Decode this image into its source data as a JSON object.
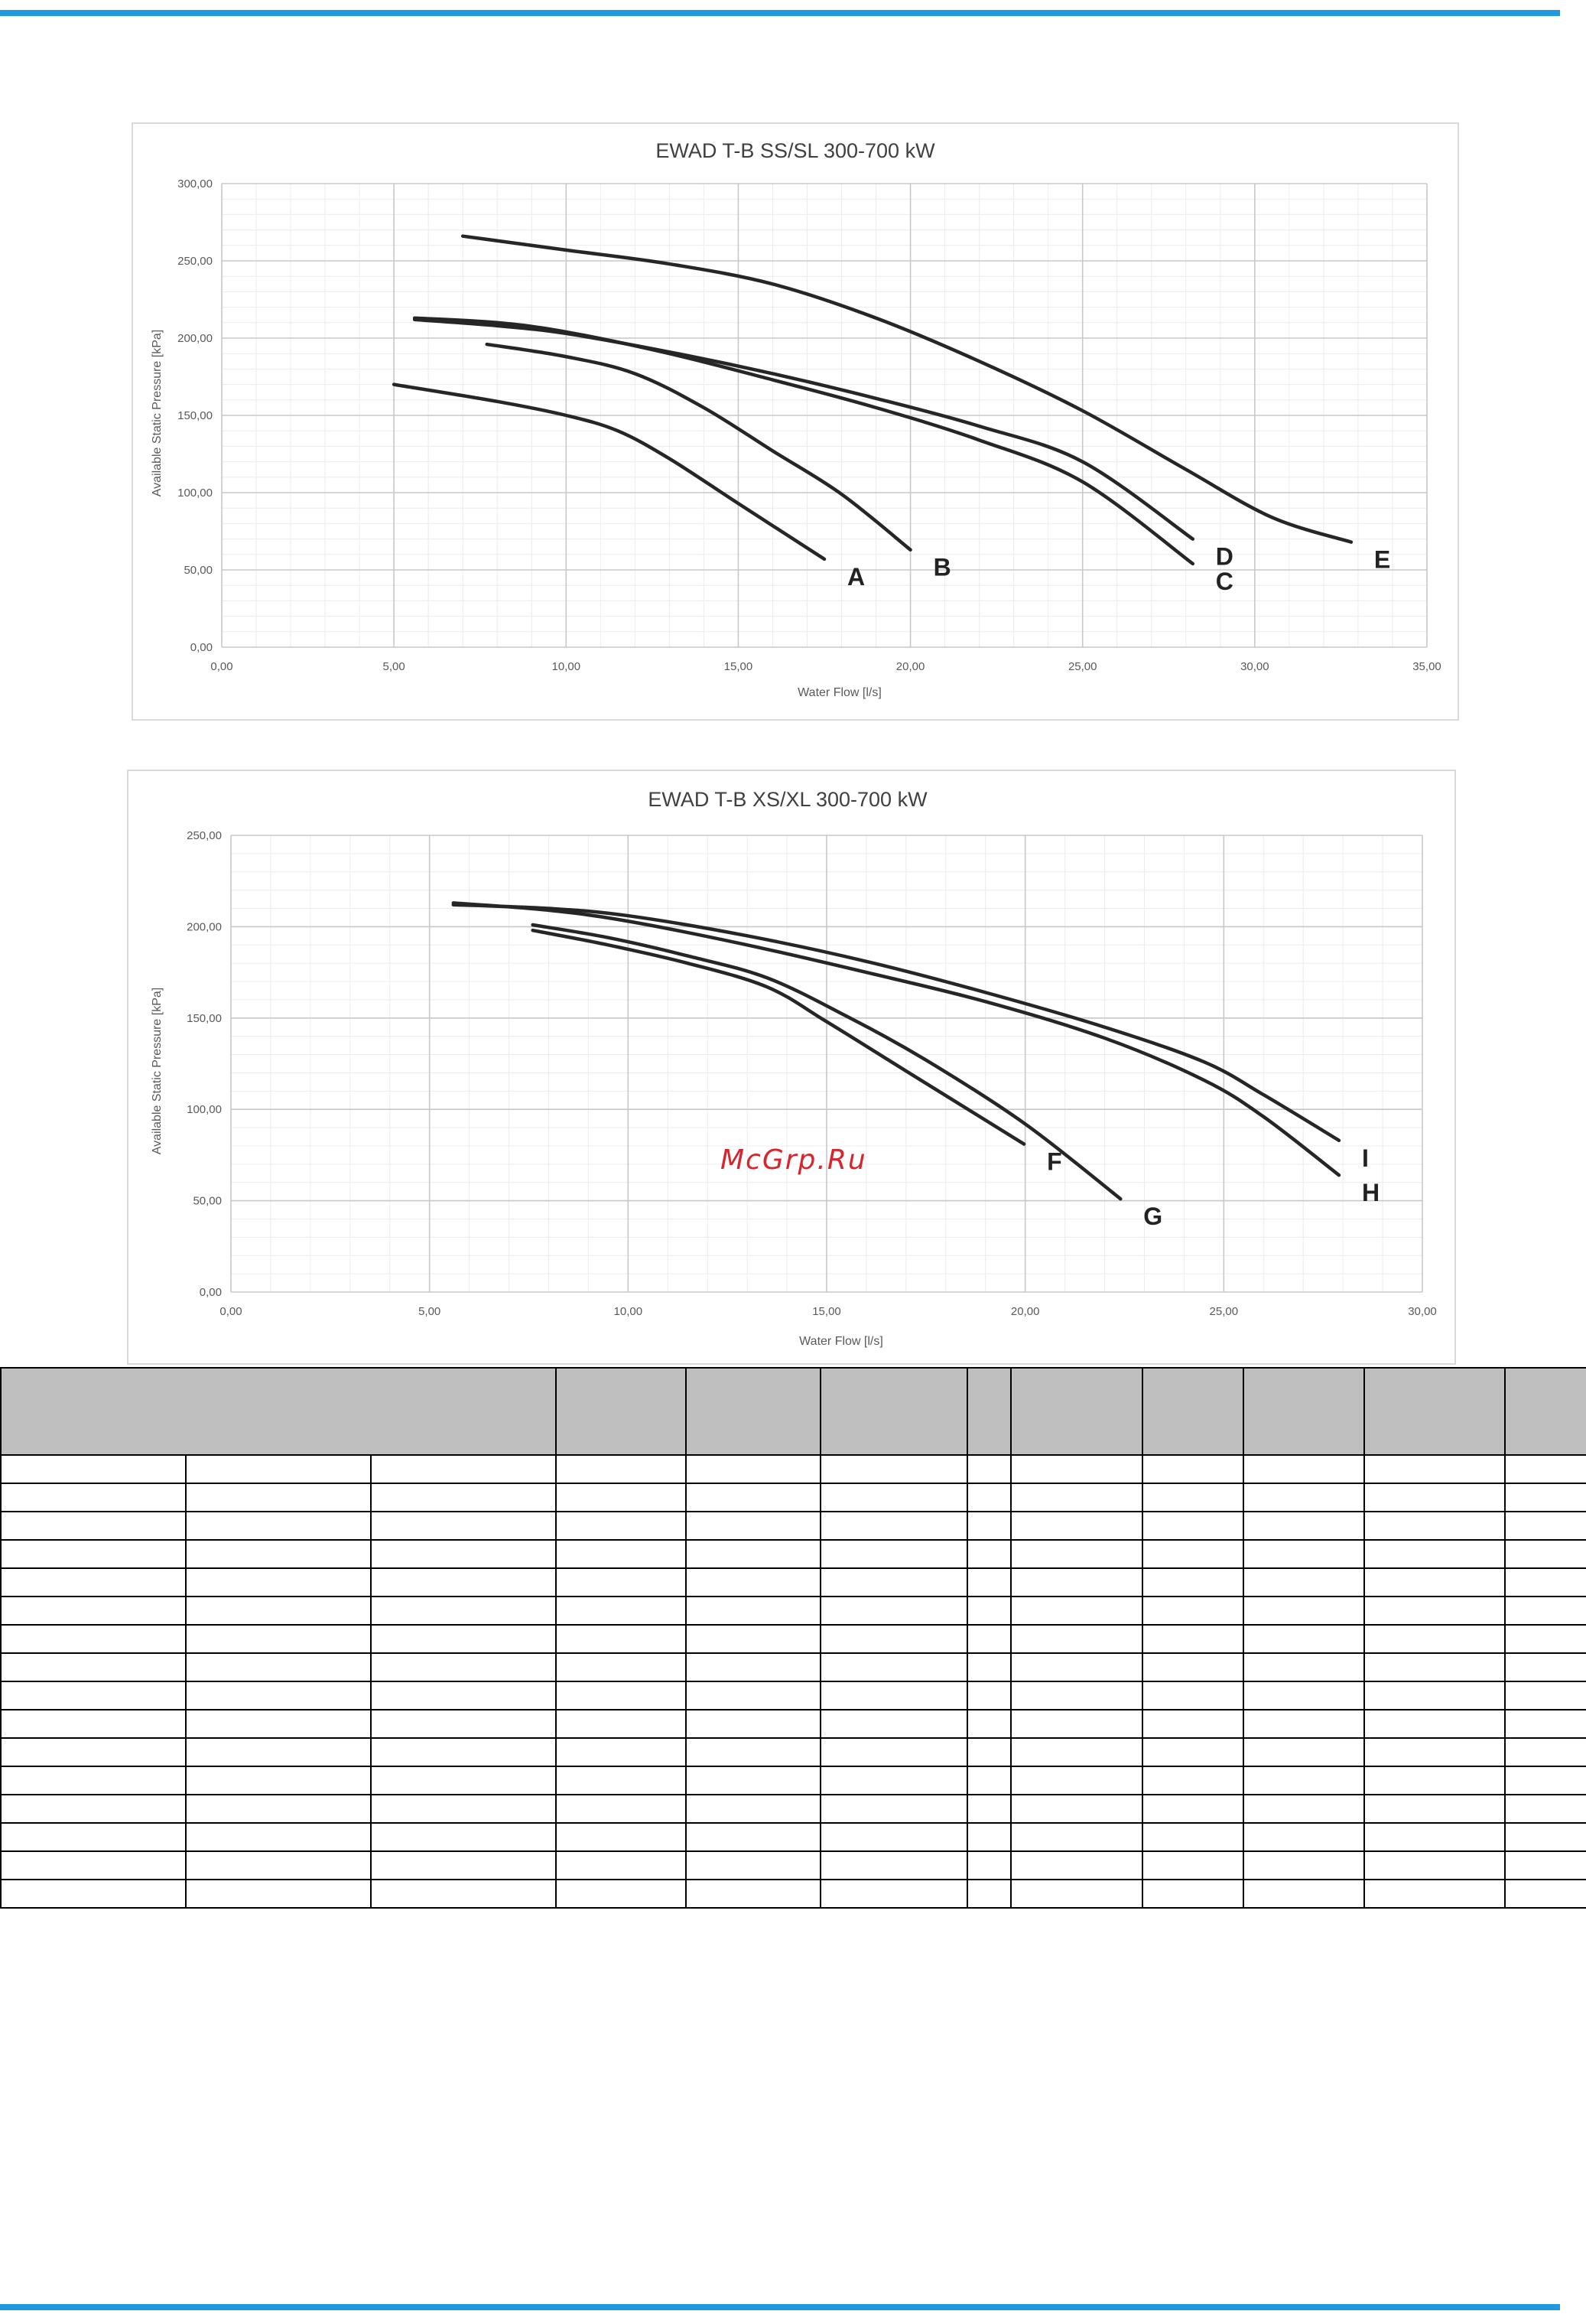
{
  "chart_data": [
    {
      "type": "line",
      "title": "EWAD T-B SS/SL 300-700 kW",
      "xlabel": "Water Flow [l/s]",
      "ylabel": "Available Static Pressure [kPa]",
      "xlim": [
        0,
        35
      ],
      "ylim": [
        0,
        300
      ],
      "x_ticks": [
        "0,00",
        "5,00",
        "10,00",
        "15,00",
        "20,00",
        "25,00",
        "30,00",
        "35,00"
      ],
      "y_ticks": [
        "0,00",
        "50,00",
        "100,00",
        "150,00",
        "200,00",
        "250,00",
        "300,00"
      ],
      "grid": true,
      "series": [
        {
          "name": "A",
          "x": [
            5.0,
            8.0,
            10.0,
            11.5,
            13.0,
            15.0,
            17.5
          ],
          "y": [
            170,
            159,
            150,
            140,
            122,
            93,
            57
          ]
        },
        {
          "name": "B",
          "x": [
            7.7,
            10.0,
            12.0,
            14.0,
            16.0,
            18.0,
            20.0
          ],
          "y": [
            196,
            188,
            177,
            155,
            127,
            99,
            63
          ]
        },
        {
          "name": "C",
          "x": [
            5.6,
            8.0,
            10.0,
            13.0,
            16.0,
            19.0,
            22.0,
            25.0,
            28.2
          ],
          "y": [
            213,
            210,
            204,
            190,
            173,
            155,
            134,
            107,
            54
          ]
        },
        {
          "name": "D",
          "x": [
            5.6,
            8.0,
            10.0,
            13.0,
            16.0,
            19.0,
            22.0,
            25.0,
            28.2
          ],
          "y": [
            212,
            208,
            203,
            191,
            177,
            161,
            143,
            120,
            70
          ]
        },
        {
          "name": "E",
          "x": [
            7.0,
            10.0,
            13.0,
            16.0,
            19.0,
            22.0,
            25.0,
            28.0,
            30.5,
            32.8
          ],
          "y": [
            266,
            257,
            248,
            235,
            213,
            185,
            153,
            115,
            84,
            68
          ]
        }
      ]
    },
    {
      "type": "line",
      "title": "EWAD T-B XS/XL 300-700 kW",
      "xlabel": "Water Flow [l/s]",
      "ylabel": "Available Static Pressure [kPa]",
      "xlim": [
        0,
        30
      ],
      "ylim": [
        0,
        250
      ],
      "x_ticks": [
        "0,00",
        "5,00",
        "10,00",
        "15,00",
        "20,00",
        "25,00",
        "30,00"
      ],
      "y_ticks": [
        "0,00",
        "50,00",
        "100,00",
        "150,00",
        "200,00",
        "250,00"
      ],
      "grid": true,
      "series": [
        {
          "name": "F",
          "x": [
            7.6,
            9.5,
            11.5,
            13.5,
            15.0,
            17.0,
            19.97
          ],
          "y": [
            198,
            190,
            180,
            167,
            148,
            121,
            81
          ]
        },
        {
          "name": "G",
          "x": [
            7.6,
            9.5,
            11.5,
            13.5,
            15.5,
            17.5,
            20.0,
            22.4
          ],
          "y": [
            201,
            194,
            184,
            172,
            151,
            127,
            92,
            51
          ]
        },
        {
          "name": "H",
          "x": [
            5.6,
            8.0,
            10.0,
            13.0,
            16.0,
            19.0,
            22.0,
            24.5,
            26.0,
            27.9
          ],
          "y": [
            213,
            209,
            203,
            190,
            175,
            159,
            139,
            116,
            96,
            64
          ]
        },
        {
          "name": "I",
          "x": [
            5.6,
            8.0,
            10.0,
            13.0,
            16.0,
            19.0,
            22.0,
            24.5,
            26.0,
            27.9
          ],
          "y": [
            212,
            210,
            206,
            195,
            181,
            164,
            145,
            126,
            108,
            83
          ]
        }
      ]
    }
  ],
  "watermark": "McGrp.Ru"
}
